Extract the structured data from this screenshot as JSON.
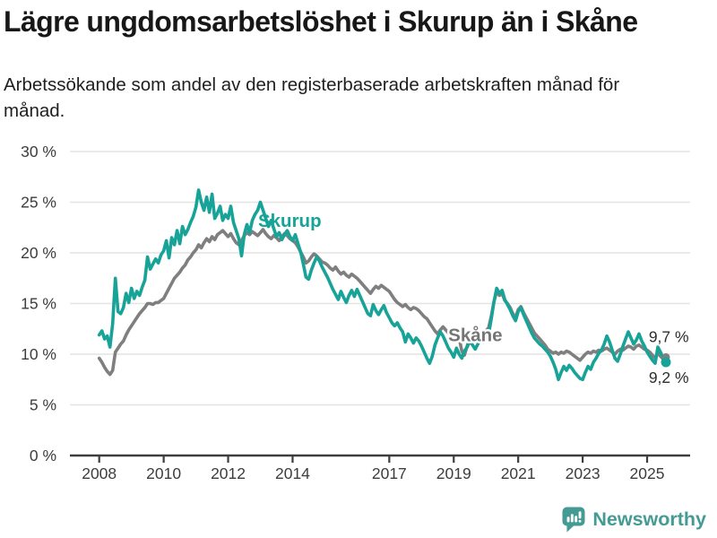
{
  "header": {
    "title": "Lägre ungdomsarbetslöshet i Skurup än i Skåne",
    "subtitle": "Arbetssökande som andel av den registerbaserade arbetskraften månad för månad."
  },
  "chart_data": {
    "type": "line",
    "unit": "%",
    "frequency": "monthly",
    "x_start": {
      "year": 2008,
      "month": 1
    },
    "x_end": {
      "year": 2025,
      "month": 8
    },
    "ylim": [
      0,
      30
    ],
    "grid": "horizontal",
    "y_ticks": [
      {
        "v": 0,
        "label": "0 %"
      },
      {
        "v": 5,
        "label": "5 %"
      },
      {
        "v": 10,
        "label": "10 %"
      },
      {
        "v": 15,
        "label": "15 %"
      },
      {
        "v": 20,
        "label": "20 %"
      },
      {
        "v": 25,
        "label": "25 %"
      },
      {
        "v": 30,
        "label": "30 %"
      }
    ],
    "x_ticks": [
      {
        "year": 2008,
        "label": "2008"
      },
      {
        "year": 2010,
        "label": "2010"
      },
      {
        "year": 2012,
        "label": "2012"
      },
      {
        "year": 2014,
        "label": "2014"
      },
      {
        "year": 2017,
        "label": "2017"
      },
      {
        "year": 2019,
        "label": "2019"
      },
      {
        "year": 2021,
        "label": "2021"
      },
      {
        "year": 2023,
        "label": "2023"
      },
      {
        "year": 2025,
        "label": "2025"
      }
    ],
    "style": {
      "grid_color": "#e4e4e4",
      "axis_color": "#3d3d3d",
      "text_color": "#3d3d3d"
    },
    "series": [
      {
        "name": "Skåne",
        "color": "#7f7f7f",
        "end_dot": true,
        "end_value": 9.7,
        "values": [
          9.6,
          9.2,
          8.7,
          8.3,
          8.0,
          8.4,
          10.2,
          10.6,
          11.0,
          11.3,
          11.9,
          12.4,
          12.8,
          13.2,
          13.6,
          14.0,
          14.3,
          14.6,
          15.0,
          15.0,
          14.9,
          15.1,
          15.1,
          15.3,
          15.5,
          16.0,
          16.5,
          17.0,
          17.5,
          17.8,
          18.1,
          18.5,
          18.8,
          19.3,
          19.6,
          20.0,
          20.3,
          20.8,
          20.5,
          21.0,
          21.4,
          21.1,
          21.6,
          21.3,
          21.8,
          22.0,
          22.2,
          21.9,
          21.6,
          21.9,
          21.4,
          21.0,
          20.8,
          21.2,
          21.7,
          22.0,
          21.8,
          22.1,
          21.9,
          21.7,
          22.0,
          22.3,
          21.9,
          21.6,
          21.4,
          21.7,
          21.5,
          21.2,
          21.6,
          21.9,
          21.7,
          21.4,
          21.2,
          21.0,
          20.6,
          20.1,
          19.6,
          19.0,
          19.2,
          19.6,
          19.9,
          19.7,
          19.4,
          19.1,
          19.0,
          18.8,
          18.5,
          18.3,
          18.6,
          18.2,
          17.9,
          18.1,
          17.8,
          17.6,
          17.9,
          17.7,
          17.5,
          17.2,
          16.9,
          16.6,
          16.3,
          16.0,
          16.4,
          16.7,
          16.5,
          16.8,
          16.6,
          16.4,
          16.2,
          15.8,
          15.4,
          15.1,
          14.9,
          14.7,
          14.9,
          14.6,
          14.4,
          14.6,
          14.5,
          14.3,
          14.0,
          13.7,
          13.5,
          13.1,
          12.7,
          12.3,
          12.0,
          12.4,
          12.7,
          12.4,
          12.1,
          11.8,
          12.2,
          12.5,
          11.6,
          10.3,
          9.9,
          10.8,
          11.6,
          11.9,
          11.7,
          11.5,
          11.8,
          12.0,
          12.3,
          12.6,
          13.8,
          15.2,
          16.2,
          15.8,
          16.0,
          15.3,
          15.0,
          14.6,
          14.0,
          13.6,
          14.4,
          14.7,
          14.1,
          13.6,
          13.1,
          12.6,
          12.1,
          11.8,
          11.5,
          11.2,
          10.9,
          10.5,
          10.3,
          10.1,
          10.2,
          10.0,
          10.2,
          10.1,
          10.3,
          10.2,
          10.0,
          9.8,
          9.6,
          9.4,
          9.7,
          10.0,
          10.2,
          10.1,
          10.3,
          10.2,
          10.4,
          10.3,
          10.5,
          10.6,
          10.4,
          10.2,
          10.0,
          10.3,
          10.5,
          10.4,
          10.6,
          10.8,
          10.7,
          10.5,
          10.8,
          10.9,
          10.7,
          10.5,
          10.4,
          10.2,
          9.9,
          9.6,
          10.1,
          9.8,
          9.5,
          9.7
        ]
      },
      {
        "name": "Skurup",
        "color": "#17a398",
        "end_dot": true,
        "end_value": 9.2,
        "values": [
          11.9,
          12.3,
          11.5,
          11.8,
          10.7,
          13.0,
          17.5,
          14.2,
          14.0,
          14.6,
          16.0,
          15.1,
          16.5,
          15.5,
          16.2,
          15.8,
          16.6,
          17.3,
          19.6,
          18.4,
          18.9,
          19.4,
          19.0,
          19.8,
          20.2,
          21.2,
          19.5,
          21.5,
          20.8,
          22.2,
          20.9,
          22.6,
          21.8,
          22.3,
          23.0,
          23.6,
          24.5,
          26.2,
          25.0,
          24.2,
          25.5,
          24.0,
          25.8,
          23.4,
          23.9,
          24.6,
          23.2,
          23.8,
          23.4,
          24.6,
          23.0,
          22.2,
          21.4,
          19.7,
          21.8,
          22.8,
          22.0,
          23.2,
          23.8,
          24.2,
          25.0,
          24.2,
          23.4,
          22.6,
          23.2,
          22.4,
          21.6,
          22.0,
          21.3,
          21.8,
          22.2,
          21.6,
          21.2,
          21.8,
          20.9,
          20.1,
          18.9,
          17.6,
          17.4,
          18.3,
          19.0,
          19.6,
          19.2,
          18.6,
          18.1,
          17.6,
          17.0,
          16.4,
          15.9,
          15.4,
          16.2,
          15.6,
          15.1,
          15.8,
          16.3,
          15.7,
          16.4,
          15.8,
          15.2,
          14.6,
          14.0,
          13.8,
          14.9,
          14.3,
          13.9,
          14.4,
          14.8,
          14.1,
          13.6,
          13.1,
          12.8,
          13.1,
          12.6,
          12.2,
          11.2,
          12.0,
          11.6,
          11.1,
          11.6,
          11.3,
          10.8,
          10.2,
          9.6,
          9.1,
          9.8,
          10.9,
          11.6,
          12.2,
          11.8,
          11.2,
          10.6,
          10.2,
          9.7,
          10.6,
          10.0,
          9.6,
          10.3,
          10.7,
          11.3,
          10.9,
          10.5,
          11.0,
          11.6,
          11.2,
          11.6,
          12.0,
          13.5,
          15.2,
          16.5,
          16.0,
          16.3,
          15.4,
          14.9,
          14.4,
          13.8,
          13.3,
          14.2,
          14.6,
          13.9,
          13.3,
          12.7,
          12.1,
          11.6,
          11.3,
          11.0,
          10.8,
          10.5,
          10.2,
          9.8,
          9.2,
          8.5,
          7.5,
          8.2,
          8.8,
          8.4,
          8.9,
          8.6,
          8.2,
          7.9,
          7.6,
          7.5,
          8.2,
          8.8,
          8.5,
          9.2,
          9.6,
          10.1,
          10.4,
          11.0,
          11.8,
          11.2,
          10.4,
          9.6,
          9.3,
          10.0,
          10.8,
          11.5,
          12.2,
          11.6,
          11.0,
          11.4,
          12.0,
          11.3,
          10.8,
          10.2,
          9.8,
          9.4,
          9.1,
          10.7,
          10.2,
          9.6,
          9.2
        ]
      }
    ],
    "annotations": [
      {
        "text": "Skurup",
        "year": 2012.93,
        "value": 23.2,
        "color": "#17a398",
        "bold": true,
        "halo": false
      },
      {
        "text": "Skåne",
        "year": 2018.83,
        "value": 11.9,
        "color": "#757575",
        "bold": true,
        "halo": true
      },
      {
        "text": "9,7 %",
        "year": 2025.05,
        "value": 11.8,
        "color": "#2e2e2e",
        "bold": false,
        "halo": false
      },
      {
        "text": "9,2 %",
        "year": 2025.05,
        "value": 7.8,
        "color": "#2e2e2e",
        "bold": false,
        "halo": false
      }
    ]
  },
  "footer": {
    "brand": "Newsworthy",
    "brand_color": "#449b93"
  }
}
